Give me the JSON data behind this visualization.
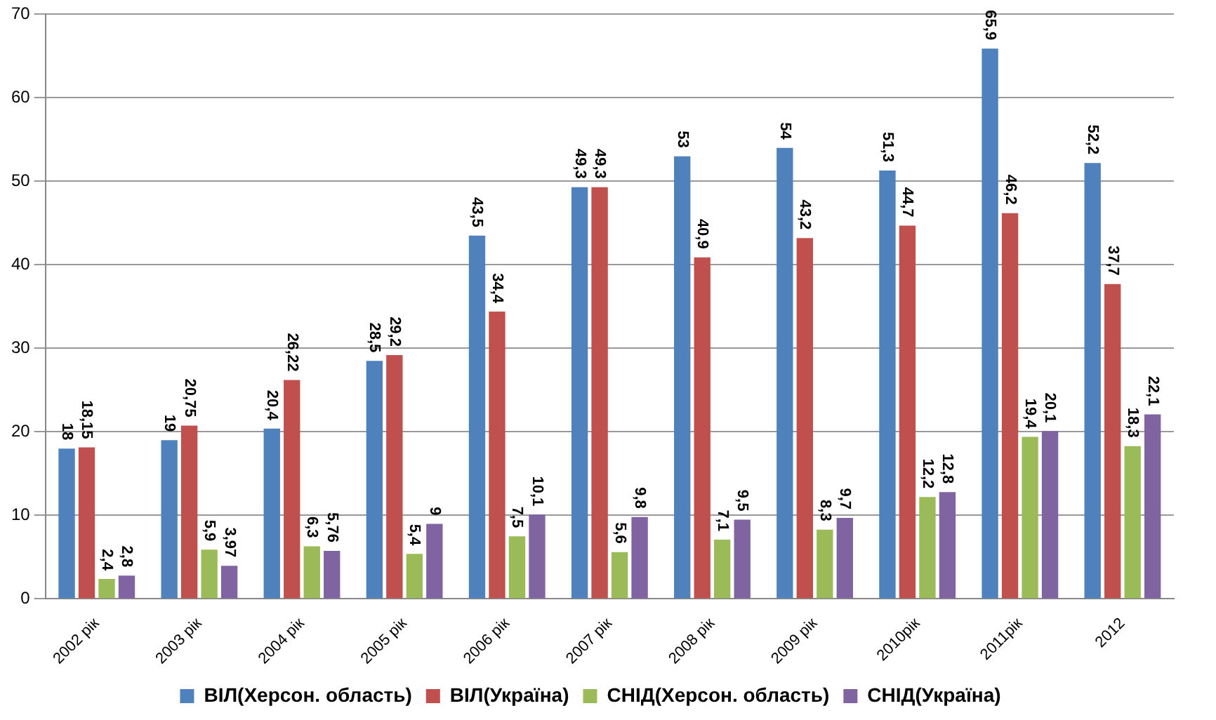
{
  "chart_data": {
    "type": "bar",
    "categories": [
      "2002 рік",
      "2003 рік",
      "2004 рік",
      "2005 рік",
      "2006 рік",
      "2007 рік",
      "2008 рік",
      "2009 рік",
      "2010рік",
      "2011рік",
      "2012"
    ],
    "series": [
      {
        "name": "ВІЛ(Херсон. область)",
        "color": "#4f81bd",
        "values": [
          18,
          19,
          20.4,
          28.5,
          43.5,
          49.3,
          53,
          54,
          51.3,
          65.9,
          52.2
        ],
        "value_labels": [
          "18",
          "19",
          "20,4",
          "28,5",
          "43,5",
          "49,3",
          "53",
          "54",
          "51,3",
          "65,9",
          "52,2"
        ]
      },
      {
        "name": "ВІЛ(Україна)",
        "color": "#c0504d",
        "values": [
          18.15,
          20.75,
          26.22,
          29.2,
          34.4,
          49.3,
          40.9,
          43.2,
          44.7,
          46.2,
          37.7
        ],
        "value_labels": [
          "18,15",
          "20,75",
          "26,22",
          "29,2",
          "34,4",
          "49,3",
          "40,9",
          "43,2",
          "44,7",
          "46,2",
          "37,7"
        ]
      },
      {
        "name": "СНІД(Херсон. область)",
        "color": "#9bbb59",
        "values": [
          2.4,
          5.9,
          6.3,
          5.4,
          7.5,
          5.6,
          7.1,
          8.3,
          12.2,
          19.4,
          18.3
        ],
        "value_labels": [
          "2,4",
          "5,9",
          "6,3",
          "5,4",
          "7,5",
          "5,6",
          "7,1",
          "8,3",
          "12,2",
          "19,4",
          "18,3"
        ]
      },
      {
        "name": "СНІД(Україна)",
        "color": "#8064a2",
        "values": [
          2.8,
          3.97,
          5.76,
          9,
          10.1,
          9.8,
          9.5,
          9.7,
          12.8,
          20.1,
          22.1
        ],
        "value_labels": [
          "2,8",
          "3,97",
          "5,76",
          "9",
          "10,1",
          "9,8",
          "9,5",
          "9,7",
          "12,8",
          "20,1",
          "22,1"
        ]
      }
    ],
    "ylim": [
      0,
      70
    ],
    "yticks": [
      0,
      10,
      20,
      30,
      40,
      50,
      60,
      70
    ],
    "grid": "y",
    "legend": "bottom"
  }
}
